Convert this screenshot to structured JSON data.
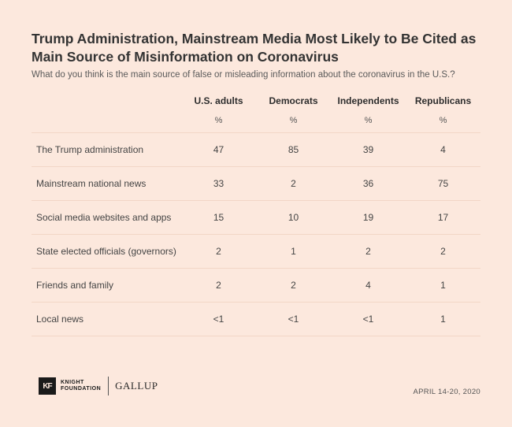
{
  "title": "Trump Administration, Mainstream Media Most Likely to Be Cited as Main Source of Misinformation on Coronavirus",
  "subtitle": "What do you think is the main source of false or misleading information about the coronavirus in the U.S.?",
  "table": {
    "columns": [
      "U.S. adults",
      "Democrats",
      "Independents",
      "Republicans"
    ],
    "unit": "%",
    "rows": [
      {
        "label": "The Trump administration",
        "values": [
          "47",
          "85",
          "39",
          "4"
        ]
      },
      {
        "label": "Mainstream national news",
        "values": [
          "33",
          "2",
          "36",
          "75"
        ]
      },
      {
        "label": "Social media websites and apps",
        "values": [
          "15",
          "10",
          "19",
          "17"
        ]
      },
      {
        "label": "State elected officials (governors)",
        "values": [
          "2",
          "1",
          "2",
          "2"
        ]
      },
      {
        "label": "Friends and family",
        "values": [
          "2",
          "2",
          "4",
          "1"
        ]
      },
      {
        "label": "Local news",
        "values": [
          "<1",
          "<1",
          "<1",
          "1"
        ]
      }
    ]
  },
  "footer": {
    "logo_mark": "KF",
    "logo_line1": "KNIGHT",
    "logo_line2": "FOUNDATION",
    "partner": "GALLUP",
    "date": "APRIL 14-20, 2020"
  }
}
